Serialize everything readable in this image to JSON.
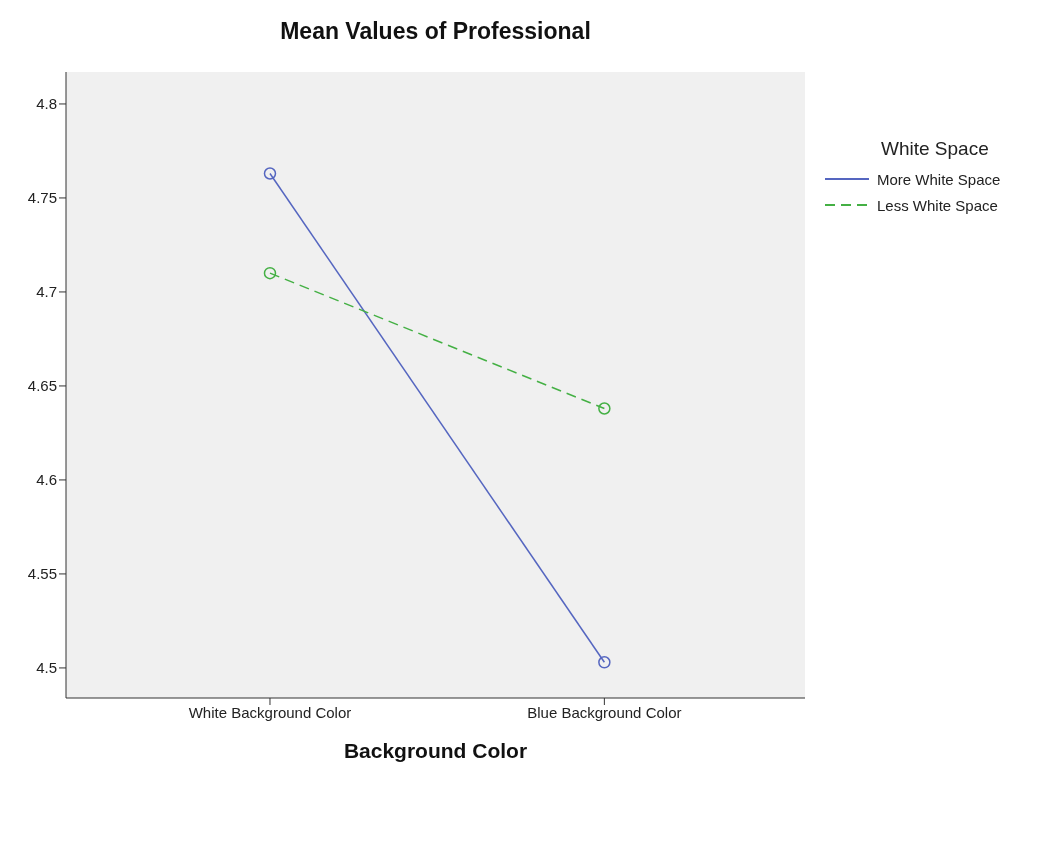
{
  "chart_data": {
    "type": "line",
    "title": "Mean Values of Professional",
    "xlabel": "Background Color",
    "legend_title": "White Space",
    "categories": [
      "White Background Color",
      "Blue Background Color"
    ],
    "series": [
      {
        "name": "More White Space",
        "color": "#5566c0",
        "values": [
          4.763,
          4.503
        ],
        "line_style": "solid"
      },
      {
        "name": "Less White Space",
        "color": "#44b044",
        "values": [
          4.71,
          4.638
        ],
        "line_style": "dashed"
      }
    ],
    "ylim": [
      4.484,
      4.817
    ],
    "yticks": [
      4.5,
      4.55,
      4.6,
      4.65,
      4.7,
      4.75,
      4.8
    ],
    "grid": false,
    "legend": "top right",
    "marker": "circle"
  }
}
